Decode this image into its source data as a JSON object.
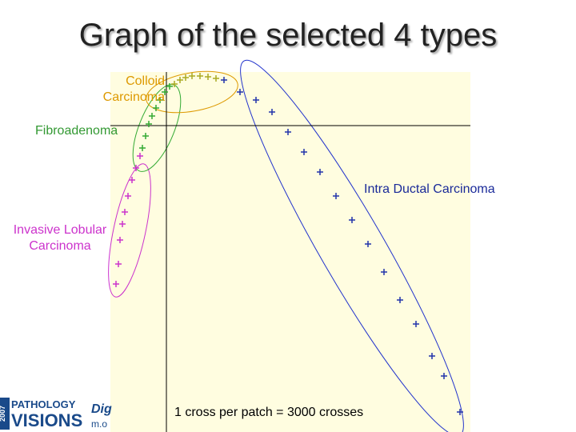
{
  "chart_data": {
    "type": "scatter",
    "title": "Graph of the selected 4 types",
    "annotation": "1 cross per patch = 3000 crosses",
    "xlim": [
      -70,
      380
    ],
    "ylim": [
      -383,
      67
    ],
    "series": [
      {
        "name": "Invasive Lobular Carcinoma",
        "color": "#cc33cc",
        "x": [
          -63,
          -60,
          -58,
          -55,
          -52,
          -48,
          -43,
          -38,
          -33
        ],
        "values": [
          -198,
          -173,
          -143,
          -123,
          -108,
          -88,
          -68,
          -53,
          -38
        ]
      },
      {
        "name": "Fibroadenoma",
        "color": "#33aa33",
        "x": [
          -30,
          -26,
          -22,
          -18,
          -13,
          -8,
          -2,
          4
        ],
        "values": [
          -28,
          -13,
          2,
          12,
          22,
          32,
          42,
          49
        ]
      },
      {
        "name": "Colloid Carcinoma",
        "color": "#aaaa22",
        "x": [
          10,
          17,
          24,
          32,
          42,
          52,
          62
        ],
        "values": [
          52,
          57,
          60,
          62,
          62,
          61,
          59
        ]
      },
      {
        "name": "Intra Ductal Carcinoma",
        "color": "#2233aa",
        "x": [
          72,
          92,
          112,
          132,
          152,
          172,
          192,
          212,
          232,
          252,
          272,
          292,
          312,
          332,
          347,
          367
        ],
        "values": [
          57,
          42,
          32,
          17,
          -8,
          -33,
          -58,
          -88,
          -118,
          -148,
          -183,
          -218,
          -248,
          -288,
          -313,
          -358
        ]
      }
    ]
  },
  "logo": {
    "year": "2007",
    "line1": "PATHOLOGY",
    "line2": "VISIONS",
    "side1": "Dig",
    "side2": "m.o"
  }
}
